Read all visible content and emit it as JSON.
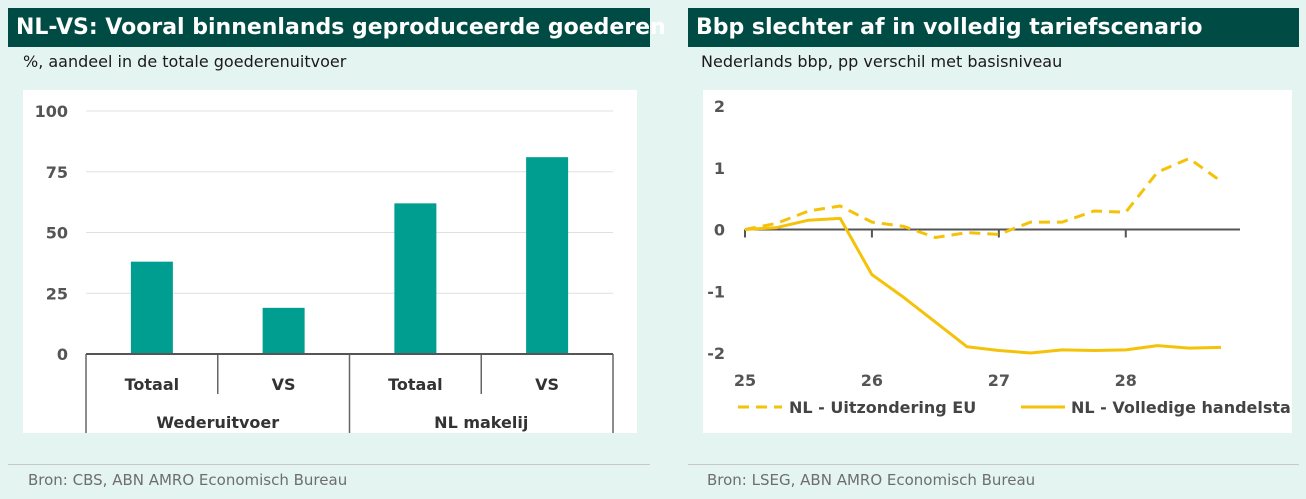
{
  "left": {
    "title": "NL-VS:  Vooral binnenlands geproduceerde goederen",
    "subtitle": "%, aandeel in de totale goederenuitvoer",
    "source": "Bron: CBS, ABN AMRO Economisch Bureau"
  },
  "right": {
    "title": "Bbp slechter af in volledig tariefscenario",
    "subtitle": "Nederlands bbp, pp verschil met basisniveau",
    "source": "Bron: LSEG, ABN AMRO Economisch Bureau"
  },
  "colors": {
    "title_bg": "#004c45",
    "bar": "#009e91",
    "line": "#f5c20a",
    "page_bg": "#e3f4f1"
  },
  "chart_data": [
    {
      "type": "bar",
      "groups": [
        {
          "name": "Wederuitvoer",
          "categories": [
            "Totaal",
            "VS"
          ],
          "values": [
            38,
            19
          ]
        },
        {
          "name": "NL makelij",
          "categories": [
            "Totaal",
            "VS"
          ],
          "values": [
            62,
            81
          ]
        }
      ],
      "ylim": [
        0,
        100
      ],
      "yticks": [
        "100",
        "75",
        "50",
        "25",
        "0"
      ],
      "grid": true
    },
    {
      "type": "line",
      "xlim": [
        25,
        28.9
      ],
      "ylim": [
        -2,
        2
      ],
      "xticks": [
        "25",
        "26",
        "27",
        "28"
      ],
      "yticks": [
        "2",
        "1",
        "0",
        "-1",
        "-2"
      ],
      "legend_position": "bottom",
      "series": [
        {
          "name": "NL - Uitzondering EU",
          "style": "dashed",
          "x": [
            25,
            25.25,
            25.5,
            25.75,
            26,
            26.25,
            26.5,
            26.75,
            27,
            27.25,
            27.5,
            27.75,
            28,
            28.25,
            28.5,
            28.75
          ],
          "y": [
            0,
            0.1,
            0.3,
            0.38,
            0.12,
            0.05,
            -0.13,
            -0.05,
            -0.08,
            0.12,
            0.12,
            0.3,
            0.28,
            0.93,
            1.15,
            0.78
          ]
        },
        {
          "name": "NL - Volledige handelstarief",
          "style": "solid",
          "x": [
            25,
            25.25,
            25.5,
            25.75,
            26,
            26.25,
            26.5,
            26.75,
            27,
            27.25,
            27.5,
            27.75,
            28,
            28.25,
            28.5,
            28.75
          ],
          "y": [
            0,
            0.03,
            0.15,
            0.18,
            -0.73,
            -1.1,
            -1.5,
            -1.9,
            -1.96,
            -2.0,
            -1.95,
            -1.96,
            -1.95,
            -1.88,
            -1.92,
            -1.91
          ]
        }
      ]
    }
  ]
}
